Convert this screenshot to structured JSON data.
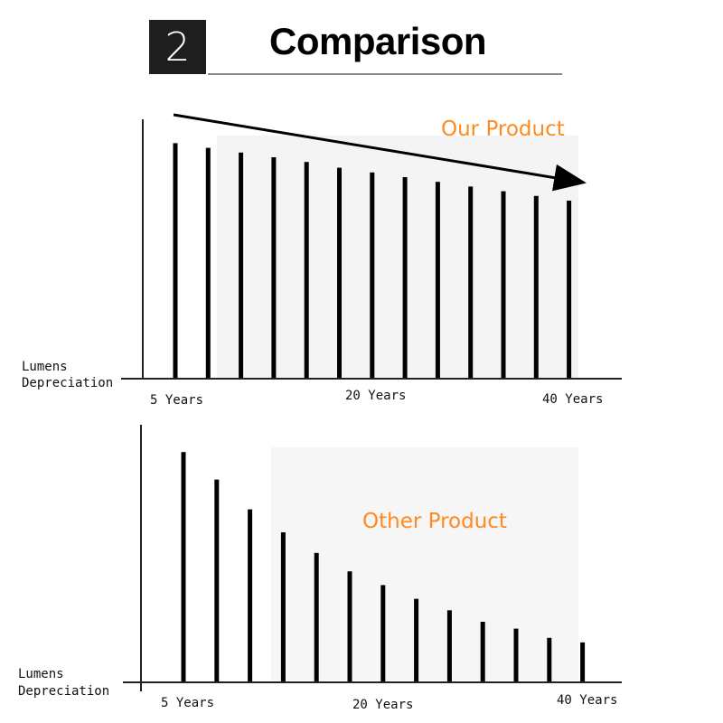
{
  "header": {
    "number": "2",
    "title": "Comparison"
  },
  "chart_data": [
    {
      "type": "bar",
      "series_label": "Our Product",
      "ylabel": "Lumens Depreciation",
      "x_tick_labels": [
        "5 Years",
        "20 Years",
        "40 Years"
      ],
      "values": [
        100,
        98,
        96,
        94,
        92,
        89.5,
        87.5,
        85.5,
        83.5,
        81.5,
        79.5,
        77.5,
        75.5
      ],
      "ylim": [
        0,
        104
      ],
      "trend_arrow": true,
      "colors": {
        "bar": "#000000",
        "label": "#ff8a1f"
      }
    },
    {
      "type": "bar",
      "series_label": "Other Product",
      "ylabel": "Lumens Depreciation",
      "x_tick_labels": [
        "5 Years",
        "20 Years",
        "40 Years"
      ],
      "values": [
        100,
        88,
        75,
        65,
        56,
        48,
        42,
        36,
        31,
        26,
        23,
        19,
        17
      ],
      "ylim": [
        0,
        104
      ],
      "trend_arrow": false,
      "colors": {
        "bar": "#000000",
        "label": "#ff8a1f"
      }
    }
  ]
}
